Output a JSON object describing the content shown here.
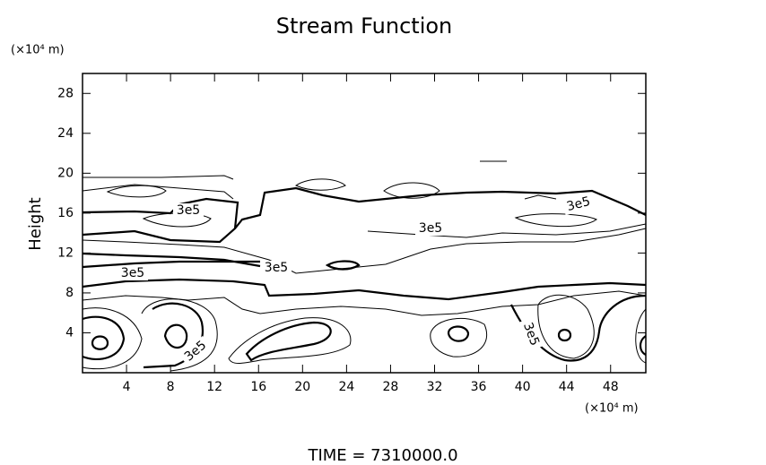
{
  "chart_data": {
    "type": "contour",
    "title": "Stream Function",
    "x_unit_label": "(×10⁴ m)",
    "y_unit_label": "(×10⁴ m)",
    "ylabel": "Height",
    "footer": "TIME  =  7310000.0",
    "contour_labels": [
      "3e5",
      "3e5",
      "3e5",
      "3e5",
      "3e5",
      "3e5",
      "3e5"
    ],
    "xlim": [
      0,
      51.2
    ],
    "xticks": [
      4,
      8,
      12,
      16,
      20,
      24,
      28,
      32,
      36,
      40,
      44,
      48
    ],
    "ylim": [
      0,
      30
    ],
    "yticks": [
      4,
      8,
      12,
      16,
      20,
      24,
      28
    ],
    "color": "#000000"
  }
}
